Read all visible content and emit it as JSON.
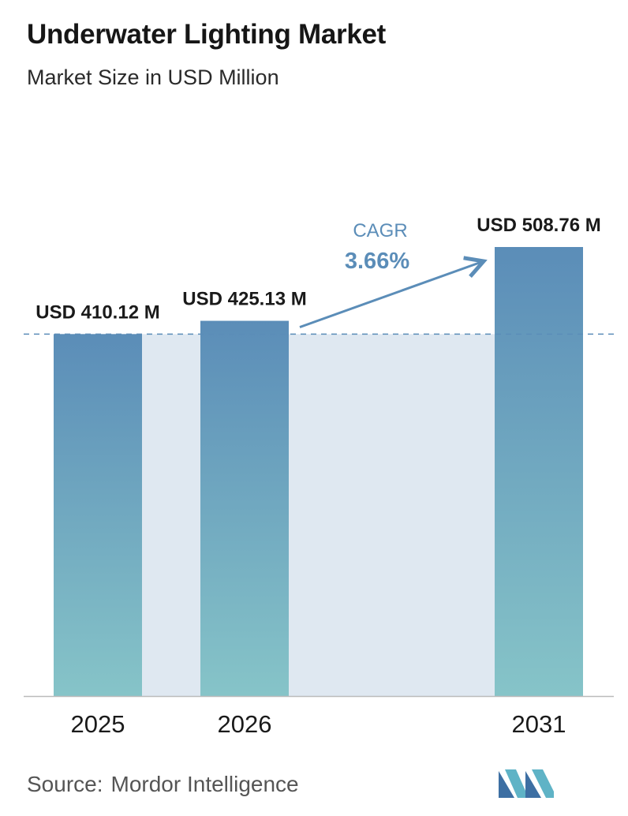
{
  "header": {
    "title": "Underwater Lighting Market",
    "subtitle": "Market Size in USD Million"
  },
  "footer": {
    "source_label": "Source:",
    "source_name": "Mordor Intelligence",
    "logo_icon": "mordor-intelligence-logo-icon"
  },
  "colors": {
    "bar_top": "#5b8db8",
    "bar_bottom": "#86c4c8",
    "band": "#dfe8f1",
    "accent": "#5b8db8",
    "dashed_line": "#5b8db8",
    "baseline": "#bbbbbb"
  },
  "chart_data": {
    "type": "bar",
    "title": "Underwater Lighting Market",
    "subtitle": "Market Size in USD Million",
    "categories": [
      "2025",
      "2026",
      "2031"
    ],
    "values": [
      410.12,
      425.13,
      508.76
    ],
    "data_labels": [
      "USD 410.12 M",
      "USD 425.13 M",
      "USD 508.76 M"
    ],
    "ylim": [
      0,
      508.76
    ],
    "grid": false,
    "legend": "none",
    "reference_line": 410.12,
    "annotation": {
      "label": "CAGR",
      "value": "3.66%"
    }
  }
}
